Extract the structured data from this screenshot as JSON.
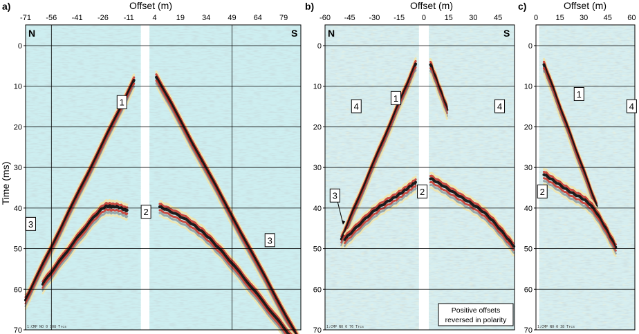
{
  "figure": {
    "y_axis_label": "Time (ms)",
    "time_ticks": [
      "0",
      "10",
      "20",
      "30",
      "40",
      "50",
      "60",
      "70"
    ],
    "colors": {
      "background": "#cdeef0",
      "trough": "#111111",
      "peak": "#c8372c",
      "halo": "#f2e4a8",
      "gap": "#ffffff"
    }
  },
  "panels": [
    {
      "label": "a)",
      "x_axis_label": "Offset (m)",
      "x_ticks": [
        "-71",
        "-56",
        "-41",
        "-26",
        "-11",
        "4",
        "19",
        "34",
        "49",
        "64",
        "79"
      ],
      "x_range": [
        -71,
        89
      ],
      "dead_trace_offset_range": [
        -4,
        1
      ],
      "direction_left": "N",
      "direction_right": "S",
      "event_markers": [
        {
          "text": "1",
          "offset": -15,
          "time": 14
        },
        {
          "text": "2",
          "offset": -1,
          "time": 41
        },
        {
          "text": "3",
          "offset": -68,
          "time": 44
        },
        {
          "text": "3",
          "offset": 71,
          "time": 48
        }
      ],
      "footer_stamp": "1:CMP NO 0  108 Trcs",
      "events": [
        {
          "kind": "refraction",
          "offsets": [
            -71,
            -8
          ],
          "times": [
            63,
            9
          ]
        },
        {
          "kind": "refraction",
          "offsets": [
            5,
            88
          ],
          "times": [
            8,
            73
          ]
        },
        {
          "kind": "reflection",
          "offsets": [
            -61,
            -30,
            -20,
            -12
          ],
          "times": [
            59,
            42,
            40,
            41
          ]
        },
        {
          "kind": "reflection",
          "offsets": [
            7,
            25,
            45,
            85
          ],
          "times": [
            40,
            44,
            52,
            73
          ]
        }
      ]
    },
    {
      "label": "b)",
      "x_axis_label": "Offset (m)",
      "x_ticks": [
        "-60",
        "-45",
        "-30",
        "-15",
        "0",
        "15",
        "30",
        "45"
      ],
      "x_range": [
        -60,
        55
      ],
      "dead_trace_offset_range": [
        -3,
        3
      ],
      "direction_left": "N",
      "direction_right": "S",
      "event_markers": [
        {
          "text": "1",
          "offset": -17,
          "time": 13
        },
        {
          "text": "2",
          "offset": -1,
          "time": 36
        },
        {
          "text": "4",
          "offset": -41,
          "time": 15
        },
        {
          "text": "4",
          "offset": 46,
          "time": 15
        }
      ],
      "arrow_marker": {
        "text": "3",
        "offset": -54,
        "time": 37,
        "to_offset": -49,
        "to_time": 44
      },
      "note_lines": [
        "Positive offsets",
        "reversed in polarity"
      ],
      "footer_stamp": "1:CMP NO 0  76 Trcs",
      "events": [
        {
          "kind": "refraction",
          "offsets": [
            -50,
            -5
          ],
          "times": [
            48,
            5
          ]
        },
        {
          "kind": "reflection",
          "offsets": [
            -48,
            -30,
            -15,
            -5
          ],
          "times": [
            48,
            41,
            37,
            34
          ]
        },
        {
          "kind": "reflection",
          "offsets": [
            4,
            20,
            38,
            55
          ],
          "times": [
            33,
            37,
            42,
            50
          ]
        },
        {
          "kind": "refraction",
          "offsets": [
            4,
            14
          ],
          "times": [
            5,
            16
          ]
        }
      ]
    },
    {
      "label": "c)",
      "x_axis_label": "Offset (m)",
      "x_ticks": [
        "0",
        "15",
        "30",
        "45",
        "60"
      ],
      "x_range": [
        0,
        62
      ],
      "dead_trace_offset_range": [
        0,
        2
      ],
      "direction_left": "",
      "direction_right": "",
      "event_markers": [
        {
          "text": "1",
          "offset": 27,
          "time": 12
        },
        {
          "text": "2",
          "offset": 4,
          "time": 36
        },
        {
          "text": "4",
          "offset": 60,
          "time": 15
        }
      ],
      "footer_stamp": "1:CMP NO 0  38 Trcs",
      "events": [
        {
          "kind": "refraction",
          "offsets": [
            5,
            38
          ],
          "times": [
            5,
            40
          ]
        },
        {
          "kind": "reflection",
          "offsets": [
            5,
            20,
            35,
            50
          ],
          "times": [
            32,
            36,
            40,
            50
          ]
        }
      ]
    }
  ]
}
